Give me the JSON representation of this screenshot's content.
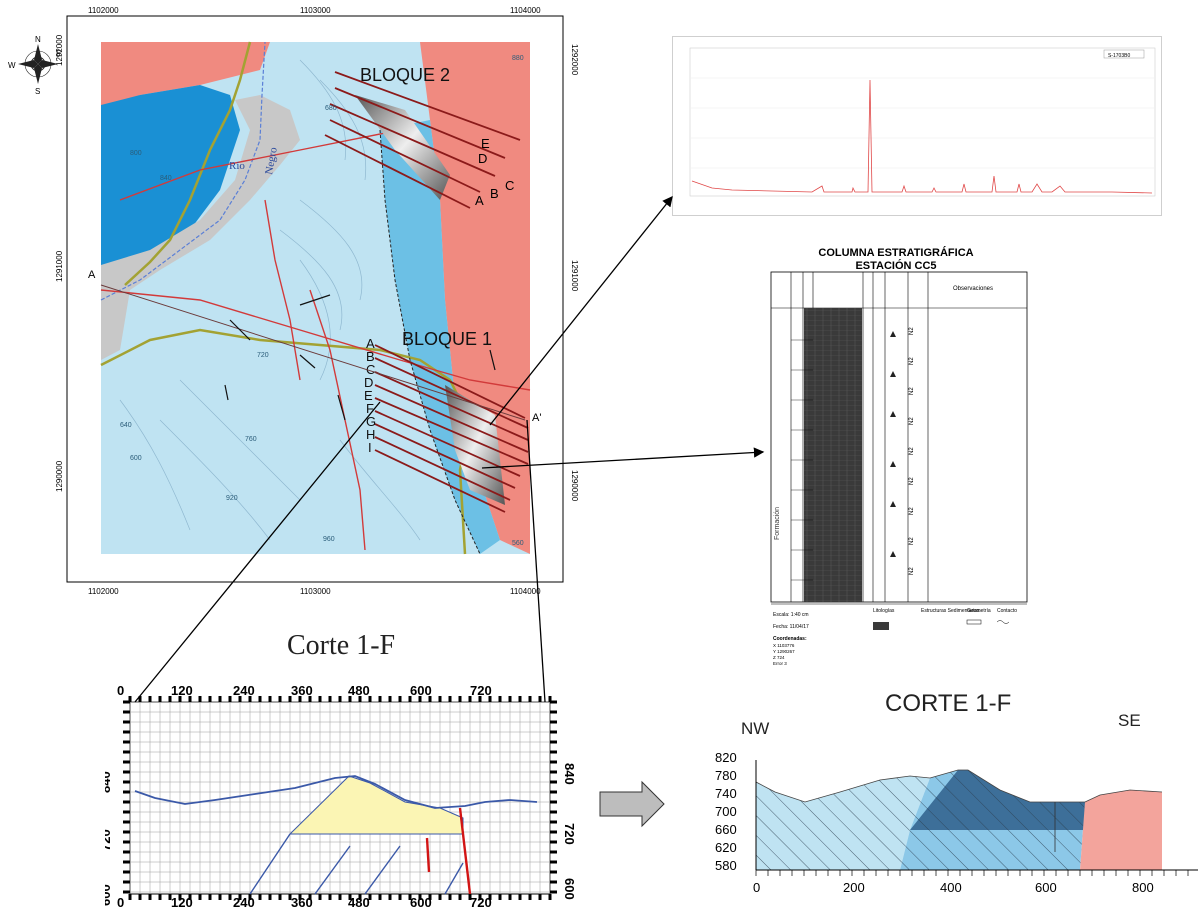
{
  "map": {
    "grid_top": [
      "1102000",
      "1103000",
      "1104000"
    ],
    "grid_bottom": [
      "1102000",
      "1103000",
      "1104000"
    ],
    "grid_left": [
      "1292000",
      "1291000",
      "1290000"
    ],
    "grid_right": [
      "1292000",
      "1291000",
      "1290000"
    ],
    "compass": {
      "n": "N",
      "s": "S",
      "e": "E",
      "w": "W"
    },
    "bloque1": "BLOQUE 1",
    "bloque2": "BLOQUE 2",
    "rio": "Rio",
    "negro": "Negro",
    "section_start": "A",
    "section_end": "A'",
    "bloque1_letters": [
      "A",
      "B",
      "C",
      "D",
      "E",
      "F",
      "G",
      "H",
      "I"
    ],
    "bloque2_letters": [
      "E",
      "D",
      "C",
      "B",
      "A"
    ],
    "contours": [
      "800",
      "840",
      "880",
      "680",
      "720",
      "760",
      "920",
      "960",
      "640",
      "600",
      "560"
    ],
    "colors": {
      "pink": "#f08a80",
      "light_blue": "#bfe3f2",
      "dark_blue": "#1a90d4",
      "mid_blue": "#6cc0e5",
      "grey": "#c8c8c8",
      "fault": "#d23a3a",
      "section_line": "#8b1a1a"
    }
  },
  "spectrum": {
    "legend": "S-1703B0"
  },
  "column": {
    "title1": "COLUMNA ESTRATIGRÁFICA",
    "title2": "ESTACIÓN CC5",
    "observaciones": "Observaciones",
    "formacion": "Formación",
    "escala": "Escala: 1:40 cm",
    "fecha": "Fecha: 11/04/17",
    "coordenadas": "Coordenadas:",
    "coord_x": "X 1103776",
    "coord_y": "Y 1290267",
    "coord_z": "Z 724",
    "error": "Error 3",
    "litologias": "Litologías",
    "estructuras": "Estructuras Sedimentarias",
    "geometria": "Geometría",
    "contacto": "Contacto",
    "codes": [
      "N2",
      "N2",
      "N2",
      "N2",
      "N2",
      "N2",
      "N2",
      "N2",
      "N2"
    ]
  },
  "corte1": {
    "title": "Corte 1-F",
    "top_ticks": [
      "0",
      "120",
      "240",
      "360",
      "480",
      "600",
      "720"
    ],
    "bottom_ticks": [
      "0",
      "120",
      "240",
      "360",
      "480",
      "600",
      "720"
    ],
    "left_ticks": [
      "840",
      "720",
      "600"
    ],
    "right_ticks": [
      "840",
      "720",
      "600"
    ]
  },
  "corte2": {
    "title": "CORTE 1-F",
    "nw": "NW",
    "se": "SE",
    "y_ticks": [
      "820",
      "780",
      "740",
      "700",
      "660",
      "620",
      "580"
    ],
    "x_ticks": [
      "0",
      "200",
      "400",
      "600",
      "800"
    ],
    "colors": {
      "light": "#bfe3f2",
      "mid": "#8cc8e8",
      "dark": "#3d6f99",
      "pink": "#f3a49c"
    }
  }
}
